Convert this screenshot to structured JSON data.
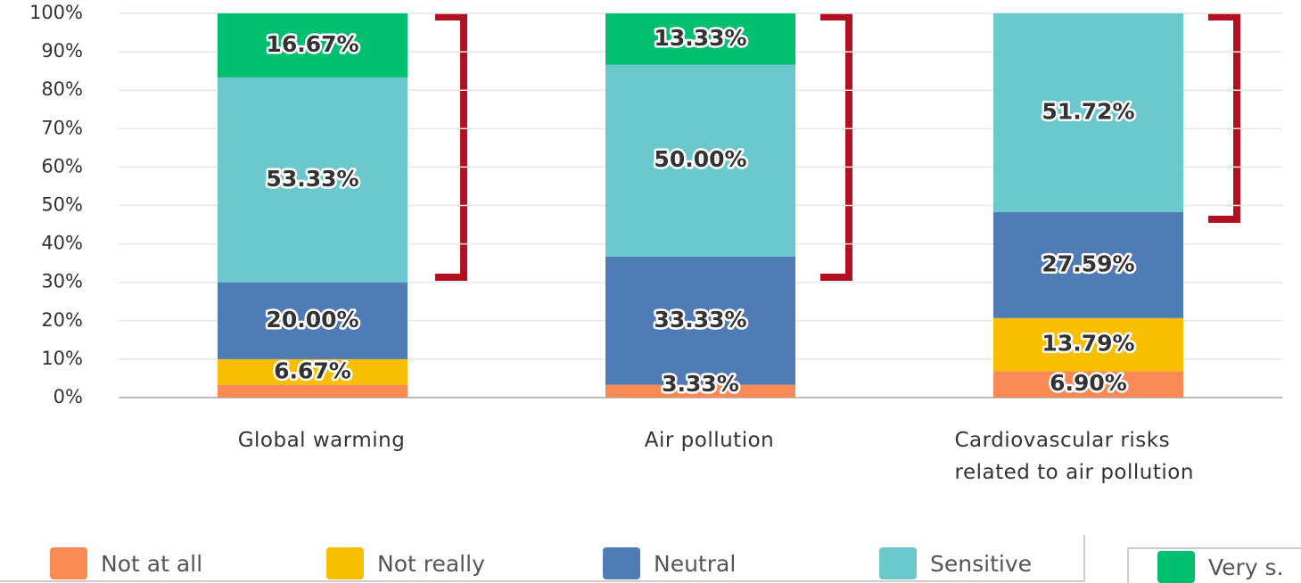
{
  "chart_data": {
    "type": "stacked_bar",
    "categories": [
      "Global warming",
      "Air pollution",
      "Cardiovascular risks related to air pollution"
    ],
    "series": [
      {
        "name": "Not at all",
        "color": "#f98a55",
        "values": [
          3.33,
          3.33,
          6.9
        ],
        "value_labels": [
          null,
          "3.33%",
          "6.90%"
        ]
      },
      {
        "name": "Not really",
        "color": "#f8be00",
        "values": [
          6.67,
          0,
          13.79
        ],
        "value_labels": [
          "6.67%",
          null,
          "13.79%"
        ]
      },
      {
        "name": "Neutral",
        "color": "#507cb6",
        "values": [
          20,
          33.33,
          27.59
        ],
        "value_labels": [
          "20.00%",
          "33.33%",
          "27.59%"
        ]
      },
      {
        "name": "Sensitive",
        "color": "#6bc8cd",
        "values": [
          53.33,
          50,
          51.72
        ],
        "value_labels": [
          "53.33%",
          "50.00%",
          "51.72%"
        ]
      },
      {
        "name": "Very s.",
        "color": "#00bf6f",
        "values": [
          16.67,
          13.33,
          0
        ],
        "value_labels": [
          "16.67%",
          "13.33%",
          null
        ]
      }
    ],
    "ylim": [
      0,
      100
    ],
    "yticks": [
      {
        "value": 0,
        "label": "0%"
      },
      {
        "value": 10,
        "label": "10%"
      },
      {
        "value": 20,
        "label": "20%"
      },
      {
        "value": 30,
        "label": "30%"
      },
      {
        "value": 40,
        "label": "40%"
      },
      {
        "value": 50,
        "label": "50%"
      },
      {
        "value": 60,
        "label": "60%"
      },
      {
        "value": 70,
        "label": "70%"
      },
      {
        "value": 80,
        "label": "80%"
      },
      {
        "value": 90,
        "label": "90%"
      },
      {
        "value": 100,
        "label": "100%"
      }
    ],
    "grid": true
  }
}
